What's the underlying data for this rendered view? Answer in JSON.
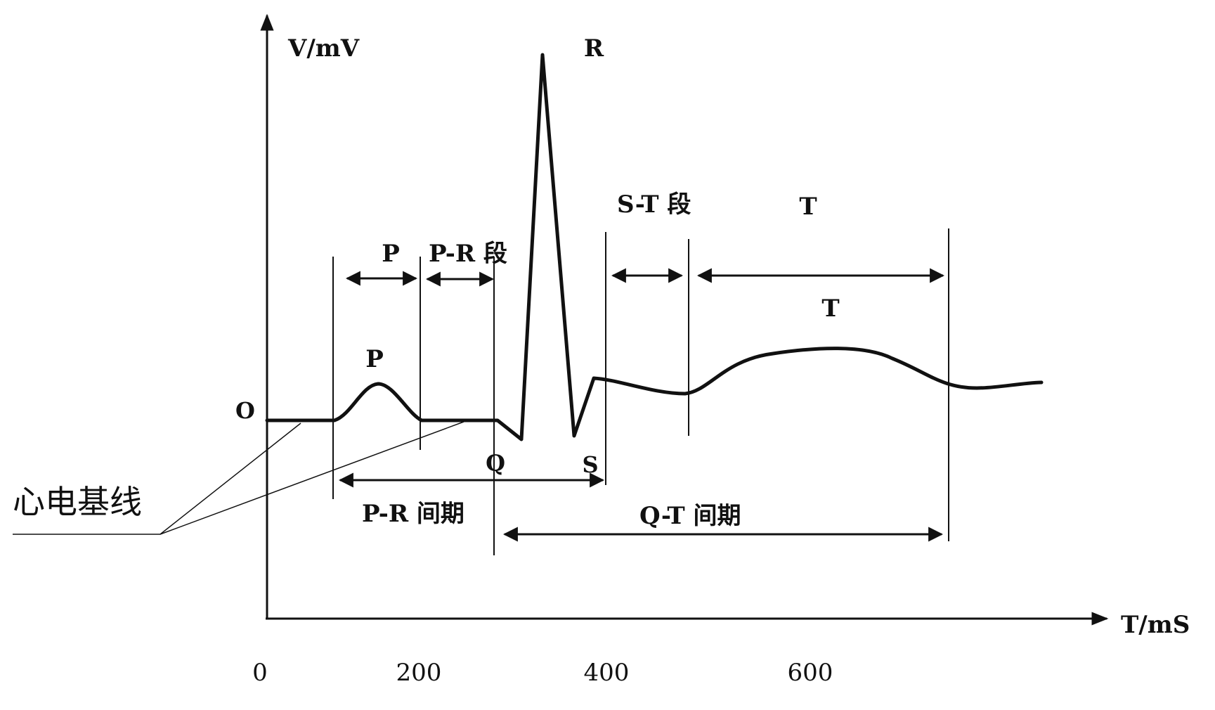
{
  "axes": {
    "y_label": "V/mV",
    "x_label": "T/mS",
    "y_origin_label": "O",
    "x_ticks": [
      "0",
      "200",
      "400",
      "600"
    ]
  },
  "waves": {
    "p": "P",
    "r": "R",
    "q": "Q",
    "s": "S",
    "t": "T"
  },
  "intervals": {
    "p": "P",
    "pr_segment": "P-R 段",
    "st_segment": "S-T 段",
    "t": "T",
    "pr_interval": "P-R 间期",
    "qt_interval": "Q-T 间期"
  },
  "baseline_label": "心电基线",
  "colors": {
    "ink": "#111111",
    "background": "#ffffff"
  }
}
